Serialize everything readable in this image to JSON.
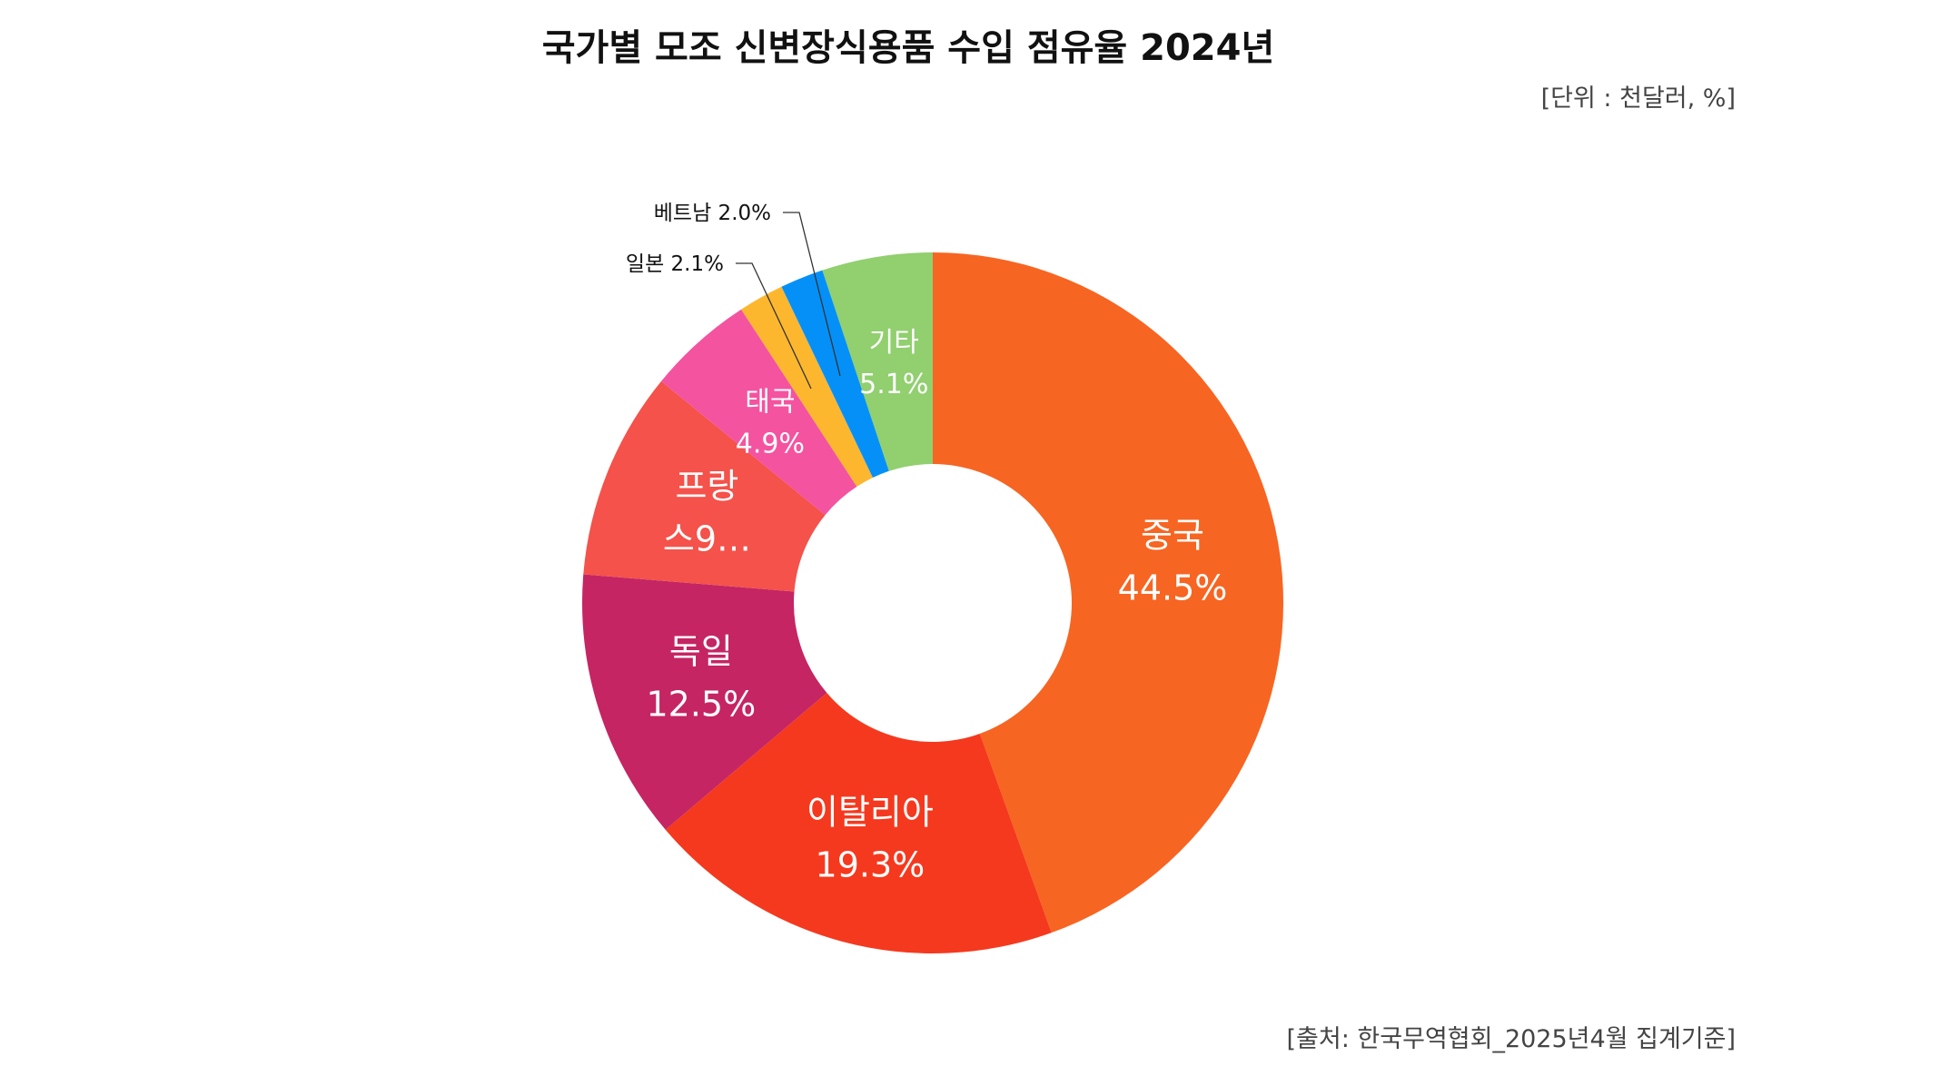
{
  "chart_data": {
    "type": "pie",
    "donut": true,
    "title": "국가별 모조 신변장식용품 수입 점유율 2024년",
    "unit_note": "[단위 : 천달러, %]",
    "source_note": "[출처: 한국무역협회_2025년4월 집계기준]",
    "slices": [
      {
        "label": "중국",
        "value": 44.5,
        "text": [
          "중국",
          "44.5%"
        ],
        "color": "#F76522",
        "label_style": "inside-large"
      },
      {
        "label": "이탈리아",
        "value": 19.3,
        "text": [
          "이탈리아",
          "19.3%"
        ],
        "color": "#F5391E",
        "label_style": "inside-large"
      },
      {
        "label": "독일",
        "value": 12.5,
        "text": [
          "독일",
          "12.5%"
        ],
        "color": "#C52563",
        "label_style": "inside-large"
      },
      {
        "label": "프랑스",
        "value": 9.6,
        "text": [
          "프랑",
          "스9…"
        ],
        "color": "#F4524A",
        "label_style": "inside-large"
      },
      {
        "label": "태국",
        "value": 4.9,
        "text": [
          "태국",
          "4.9%"
        ],
        "color": "#F453A0",
        "label_style": "inside-small"
      },
      {
        "label": "일본",
        "value": 2.1,
        "text": [
          "일본 2.1%"
        ],
        "color": "#FDB72F",
        "label_style": "callout"
      },
      {
        "label": "베트남",
        "value": 2.0,
        "text": [
          "베트남 2.0%"
        ],
        "color": "#0590F8",
        "label_style": "callout"
      },
      {
        "label": "기타",
        "value": 5.1,
        "text": [
          "기타",
          "5.1%"
        ],
        "color": "#91CF6F",
        "label_style": "inside-small"
      }
    ]
  }
}
